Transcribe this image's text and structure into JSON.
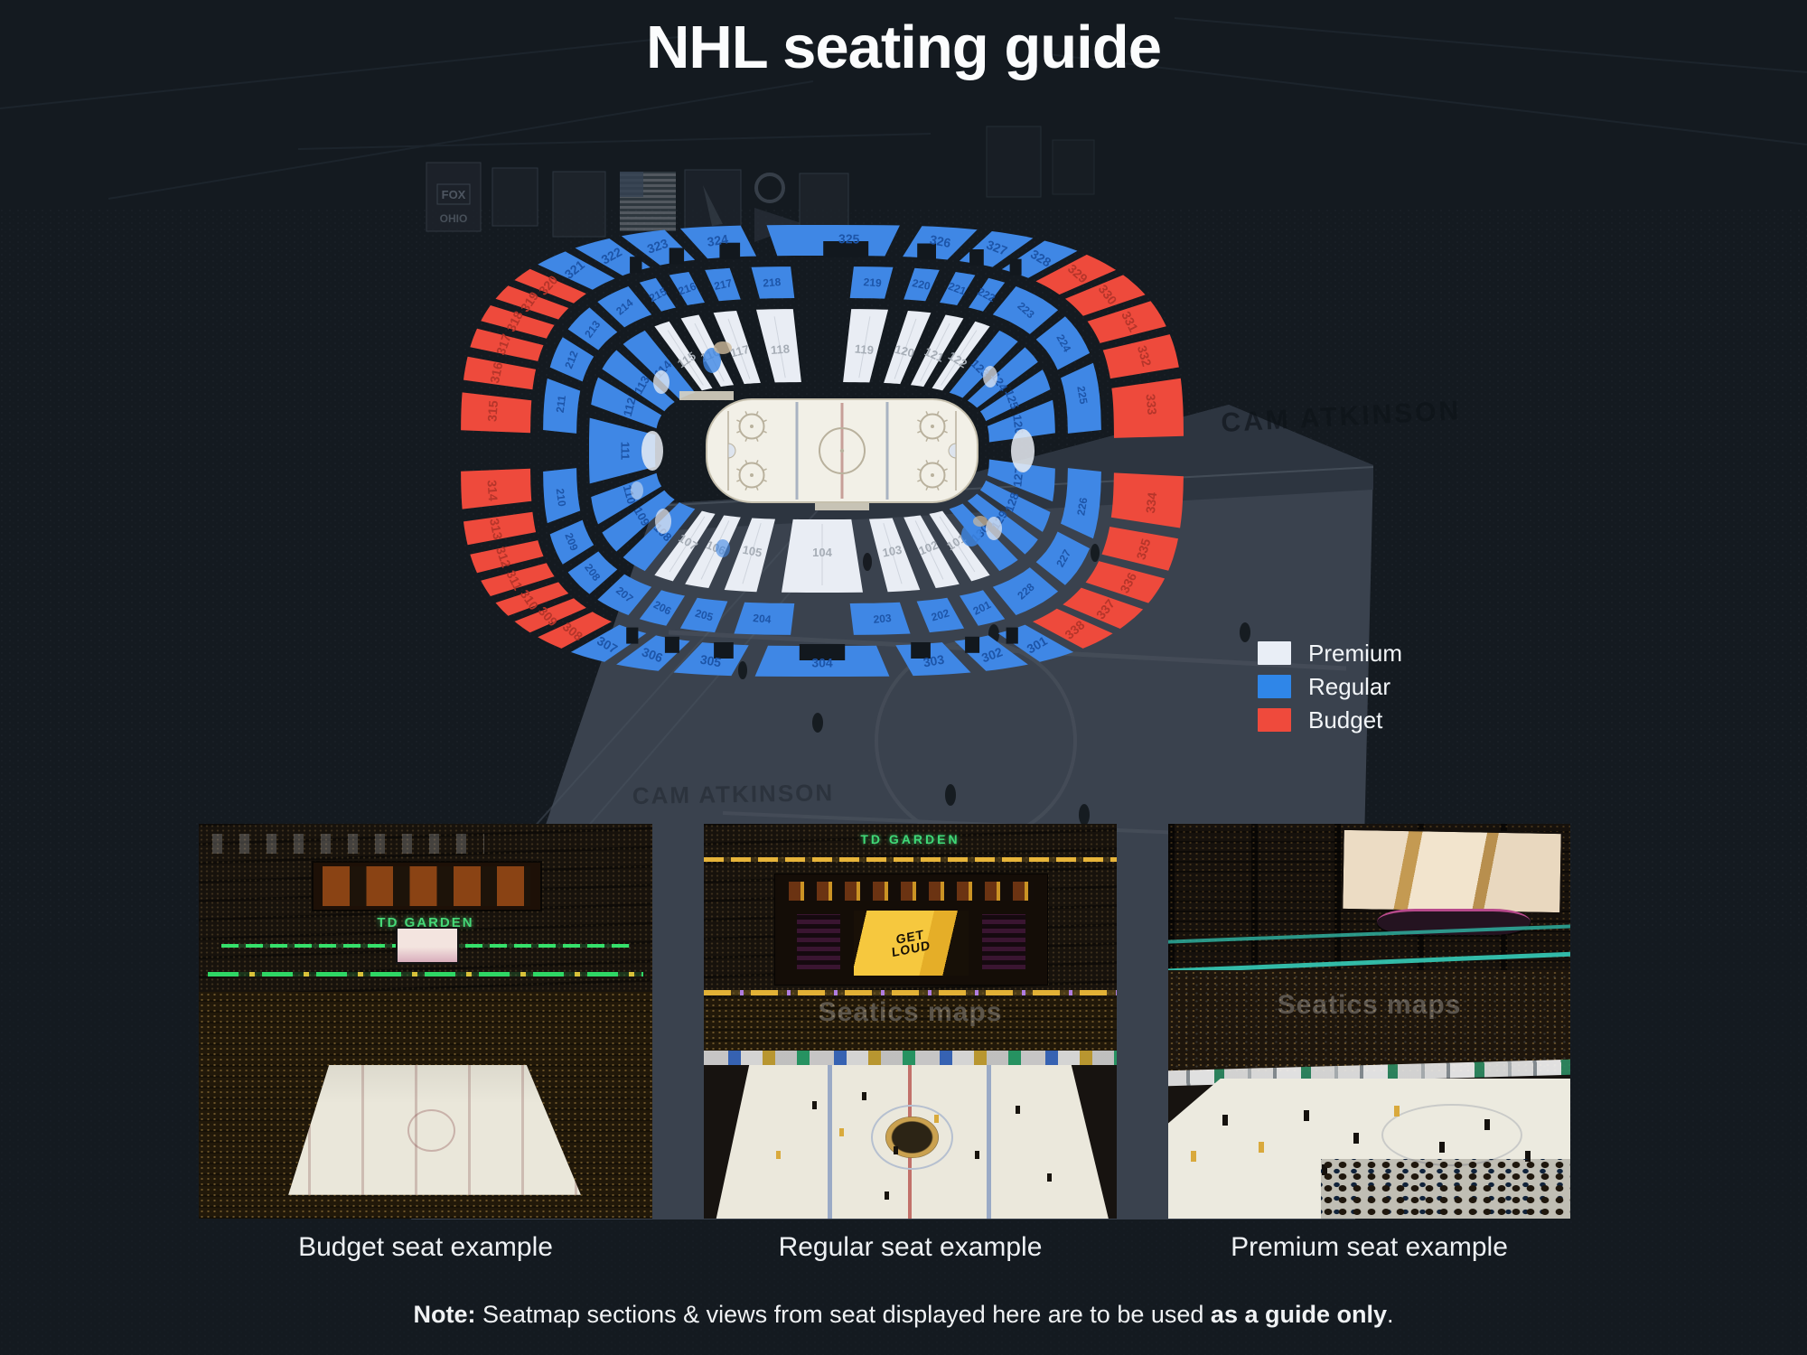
{
  "header": {
    "title": "NHL seating guide"
  },
  "legend": {
    "items": [
      {
        "id": "premium",
        "label": "Premium",
        "color": "#e9eef6"
      },
      {
        "id": "regular",
        "label": "Regular",
        "color": "#2f86e8"
      },
      {
        "id": "budget",
        "label": "Budget",
        "color": "#ef4a3c"
      }
    ]
  },
  "seatmap": {
    "colors": {
      "premium": "#e9edf4",
      "regular": "#3f87e5",
      "budget": "#ee4a3c",
      "gap": "#12181e",
      "rink": "#f2f0e7",
      "rink_line": "#b9b19d",
      "rink_blue_line": "#a9b3c2",
      "rink_center_line": "#c79f98",
      "label_premium": "#a6adb6",
      "label_regular": "#1d55a8",
      "label_budget": "#b5352a"
    },
    "rings": [
      {
        "id": "inner",
        "a_in": 185,
        "b_in": 76,
        "a_out": 258,
        "b_out": 157,
        "font": 13,
        "gap": 2.0,
        "label_t": 0.45,
        "notched": false,
        "groups": [
          {
            "from": 52,
            "to": 128,
            "tier": "premium",
            "sections": [
              "101",
              "102",
              "103",
              "104",
              "105",
              "106",
              "107"
            ]
          },
          {
            "from": 128,
            "to": 232,
            "tier": "regular",
            "sections": [
              "108",
              "109",
              "110",
              "111",
              "112",
              "113",
              "114"
            ]
          },
          {
            "from": 232,
            "to": 308,
            "tier": "premium",
            "sections": [
              "115",
              "116",
              "117",
              "118",
              "119",
              "120",
              "121",
              "122"
            ]
          },
          {
            "from": 308,
            "to": 412,
            "tier": "regular",
            "sections": [
              "123",
              "124",
              "125",
              "126",
              "127",
              "128",
              "129",
              "130"
            ]
          }
        ]
      },
      {
        "id": "mid",
        "a_in": 272,
        "b_in": 169,
        "a_out": 309,
        "b_out": 204,
        "font": 12,
        "gap": 1.7,
        "label_t": 0.5,
        "notched": false,
        "groups": [
          {
            "from": 58,
            "to": 122,
            "tier": "regular",
            "sections": [
              "201",
              "202",
              "203",
              "204",
              "205",
              "206"
            ]
          },
          {
            "from": 122,
            "to": 238,
            "tier": "regular",
            "sections": [
              "207",
              "208",
              "209",
              "210",
              "211",
              "212",
              "213",
              "214"
            ]
          },
          {
            "from": 238,
            "to": 302,
            "tier": "regular",
            "sections": [
              "215",
              "216",
              "217",
              "218",
              "219",
              "220",
              "221",
              "222"
            ]
          },
          {
            "from": 302,
            "to": 418,
            "tier": "regular",
            "sections": [
              "223",
              "224",
              "225",
              "226",
              "227",
              "228"
            ]
          }
        ]
      },
      {
        "id": "outer",
        "a_in": 323,
        "b_in": 216,
        "a_out": 400,
        "b_out": 250,
        "font": 14,
        "gap": 1.2,
        "label_t": 0.55,
        "notched": true,
        "groups": [
          {
            "from": 55,
            "to": 125,
            "tier": "regular",
            "sections": [
              "301",
              "302",
              "303",
              "304",
              "305",
              "306",
              "307"
            ]
          },
          {
            "from": 125,
            "to": 134,
            "tier": "budget",
            "sections": [
              "308"
            ]
          },
          {
            "from": 134,
            "to": 226,
            "tier": "budget",
            "sections": [
              "309",
              "310",
              "311",
              "312",
              "313",
              "314",
              "315",
              "316",
              "317",
              "318",
              "319",
              "320"
            ]
          },
          {
            "from": 226,
            "to": 306,
            "tier": "regular",
            "sections": [
              "321",
              "322",
              "323",
              "324",
              "325",
              "326",
              "327",
              "328"
            ]
          },
          {
            "from": 306,
            "to": 415,
            "tier": "budget",
            "sections": [
              "329",
              "330",
              "331",
              "332",
              "333",
              "334",
              "335",
              "336",
              "337",
              "338"
            ]
          }
        ]
      }
    ]
  },
  "background": {
    "jumbotron_text": "CAM ATKINSON",
    "banner_fox": "FOX",
    "banner_ohio": "OHIO"
  },
  "photos": [
    {
      "caption": "Budget seat example",
      "scoreboard_text": "TD GARDEN",
      "watermark": ""
    },
    {
      "caption": "Regular seat example",
      "scoreboard_text": "TD GARDEN",
      "screen_text": "GET LOUD",
      "watermark": "Seatics maps"
    },
    {
      "caption": "Premium seat example",
      "watermark": "Seatics maps"
    }
  ],
  "note": {
    "prefix": "Note:",
    "body": " Seatmap sections & views from seat displayed here are to be used ",
    "bold": "as a guide only",
    "suffix": "."
  }
}
